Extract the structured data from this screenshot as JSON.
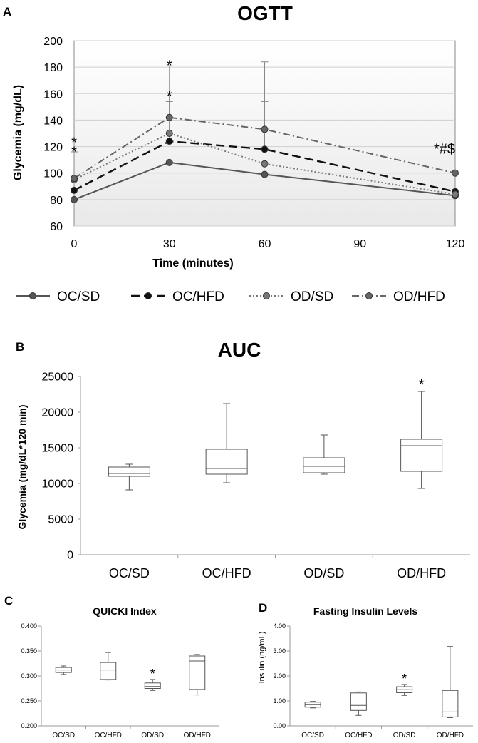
{
  "panels": {
    "a": "A",
    "b": "B",
    "c": "C",
    "d": "D"
  },
  "chart_data": [
    {
      "type": "line",
      "title": "OGTT",
      "xlabel": "Time (minutes)",
      "ylabel": "Glycemia (mg/dL)",
      "x": [
        0,
        30,
        60,
        120
      ],
      "xticks": [
        "0",
        "30",
        "60",
        "90",
        "120"
      ],
      "yticks": [
        "60",
        "80",
        "100",
        "120",
        "140",
        "160",
        "180",
        "200"
      ],
      "ylim": [
        60,
        200
      ],
      "xlim": [
        0,
        120
      ],
      "series": [
        {
          "name": "OC/SD",
          "values": [
            80,
            108,
            99,
            83
          ],
          "err": [
            0,
            0,
            0,
            0
          ],
          "color": "#555555",
          "dash": "",
          "width": 2
        },
        {
          "name": "OC/HFD",
          "values": [
            87,
            124,
            118,
            86
          ],
          "err": [
            0,
            30,
            36,
            0
          ],
          "color": "#111111",
          "dash": "12,6",
          "width": 2.4
        },
        {
          "name": "OD/SD",
          "values": [
            95,
            130,
            107,
            84
          ],
          "err": [
            0,
            32,
            0,
            0
          ],
          "color": "#777777",
          "dash": "2,3",
          "width": 2
        },
        {
          "name": "OD/HFD",
          "values": [
            96,
            142,
            133,
            100
          ],
          "err": [
            20,
            39,
            51,
            0
          ],
          "color": "#666666",
          "dash": "10,4,2,4",
          "width": 2
        }
      ],
      "annotations": [
        {
          "x": 0,
          "y": 118,
          "text": "*"
        },
        {
          "x": 0,
          "y": 125,
          "text": "*"
        },
        {
          "x": 30,
          "y": 160,
          "text": "*"
        },
        {
          "x": 30,
          "y": 183,
          "text": "*"
        },
        {
          "x": 120,
          "y": 120,
          "text": "*#$"
        }
      ],
      "legend": [
        "OC/SD",
        "OC/HFD",
        "OD/SD",
        "OD/HFD"
      ]
    },
    {
      "type": "box",
      "title": "AUC",
      "ylabel": "Glycemia (mg/dL*120 min)",
      "ylim": [
        0,
        25000
      ],
      "yticks": [
        "0",
        "5000",
        "10000",
        "15000",
        "20000",
        "25000"
      ],
      "categories": [
        "OC/SD",
        "OC/HFD",
        "OD/SD",
        "OD/HFD"
      ],
      "boxes": [
        {
          "min": 9100,
          "q1": 11000,
          "median": 11400,
          "q3": 12300,
          "max": 12700,
          "mark": ""
        },
        {
          "min": 10100,
          "q1": 11300,
          "median": 12100,
          "q3": 14800,
          "max": 21200,
          "mark": ""
        },
        {
          "min": 11300,
          "q1": 11500,
          "median": 12400,
          "q3": 13600,
          "max": 16800,
          "mark": ""
        },
        {
          "min": 9300,
          "q1": 11700,
          "median": 15300,
          "q3": 16200,
          "max": 22900,
          "mark": "*"
        }
      ]
    },
    {
      "type": "box",
      "title": "QUICKI Index",
      "ylabel": "",
      "ylim": [
        0.2,
        0.4
      ],
      "yticks": [
        "0.200",
        "0.250",
        "0.300",
        "0.350",
        "0.400"
      ],
      "categories": [
        "OC/SD",
        "OC/HFD",
        "OD/SD",
        "OD/HFD"
      ],
      "boxes": [
        {
          "min": 0.303,
          "q1": 0.307,
          "median": 0.312,
          "q3": 0.317,
          "max": 0.32,
          "mark": ""
        },
        {
          "min": 0.292,
          "q1": 0.293,
          "median": 0.312,
          "q3": 0.327,
          "max": 0.347,
          "mark": ""
        },
        {
          "min": 0.271,
          "q1": 0.275,
          "median": 0.279,
          "q3": 0.286,
          "max": 0.293,
          "mark": "*"
        },
        {
          "min": 0.262,
          "q1": 0.273,
          "median": 0.33,
          "q3": 0.34,
          "max": 0.343,
          "mark": ""
        }
      ]
    },
    {
      "type": "box",
      "title": "Fasting Insulin Levels",
      "ylabel": "Insulin (ng/mL)",
      "ylim": [
        0,
        4
      ],
      "yticks": [
        "0.00",
        "1.00",
        "2.00",
        "3.00",
        "4.00"
      ],
      "categories": [
        "OC/SD",
        "OC/HFD",
        "OD/SD",
        "OD/HFD"
      ],
      "boxes": [
        {
          "min": 0.72,
          "q1": 0.75,
          "median": 0.85,
          "q3": 0.95,
          "max": 0.98,
          "mark": ""
        },
        {
          "min": 0.42,
          "q1": 0.62,
          "median": 0.82,
          "q3": 1.32,
          "max": 1.36,
          "mark": ""
        },
        {
          "min": 1.22,
          "q1": 1.33,
          "median": 1.45,
          "q3": 1.57,
          "max": 1.66,
          "mark": "*"
        },
        {
          "min": 0.33,
          "q1": 0.36,
          "median": 0.56,
          "q3": 1.42,
          "max": 3.18,
          "mark": ""
        }
      ]
    }
  ]
}
